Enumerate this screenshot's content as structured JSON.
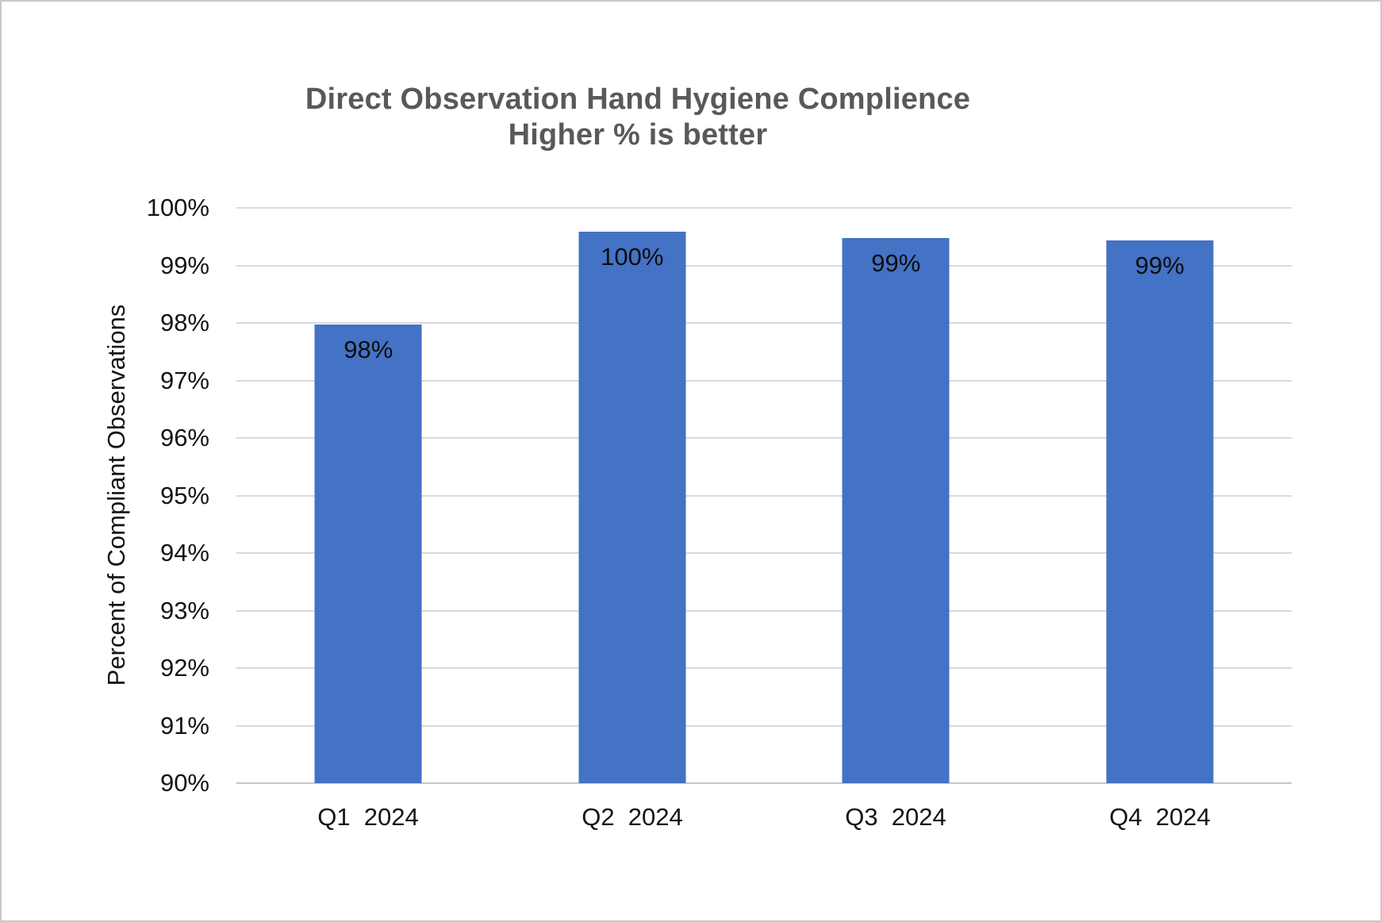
{
  "window": {
    "background": "#ffffff",
    "border_color": "#c9c9cc"
  },
  "chart_data": {
    "type": "bar",
    "title_line1": "Direct Observation Hand Hygiene Complience",
    "title_line2": "Higher % is better",
    "ylabel": "Percent of Compliant Observations",
    "categories": [
      "Q1  2024",
      "Q2  2024",
      "Q3  2024",
      "Q4  2024"
    ],
    "bar_labels": [
      "98%",
      "100%",
      "99%",
      "99%"
    ],
    "rounded_values": [
      98,
      100,
      99,
      99
    ],
    "values_pct": [
      97.97,
      99.59,
      99.48,
      99.43
    ],
    "ylim": [
      90,
      100
    ],
    "ytick_step": 1,
    "yticks": [
      "100%",
      "99%",
      "98%",
      "97%",
      "96%",
      "95%",
      "94%",
      "93%",
      "92%",
      "91%",
      "90%"
    ],
    "grid": "horizontal",
    "legend": "none",
    "bar_color": "#4472C4",
    "gridline_color": "#D9D9D9",
    "title_color": "#595959",
    "axis_text_color": "#141414"
  }
}
